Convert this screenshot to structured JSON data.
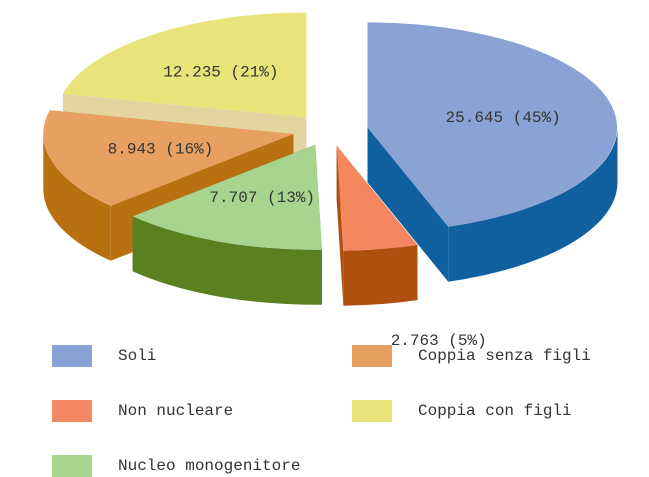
{
  "chart_data": {
    "type": "pie3d",
    "categories": [
      "Soli",
      "Non nucleare",
      "Nucleo monogenitore",
      "Coppia senza figli",
      "Coppia con figli"
    ],
    "values": [
      25645,
      2763,
      7707,
      8943,
      12235
    ],
    "value_labels": [
      "25.645 (45%)",
      "2.763 (5%)",
      "7.707 (13%)",
      "8.943 (16%)",
      "12.235 (21%)"
    ],
    "colors": [
      "#8aa2d4",
      "#f4875f",
      "#a8d490",
      "#e8a060",
      "#e8e47a"
    ],
    "side_colors": [
      "#1060a0",
      "#b05010",
      "#5a8020",
      "#b87010",
      "#e4d4a0"
    ],
    "exploded": true,
    "legend": "bottom"
  }
}
